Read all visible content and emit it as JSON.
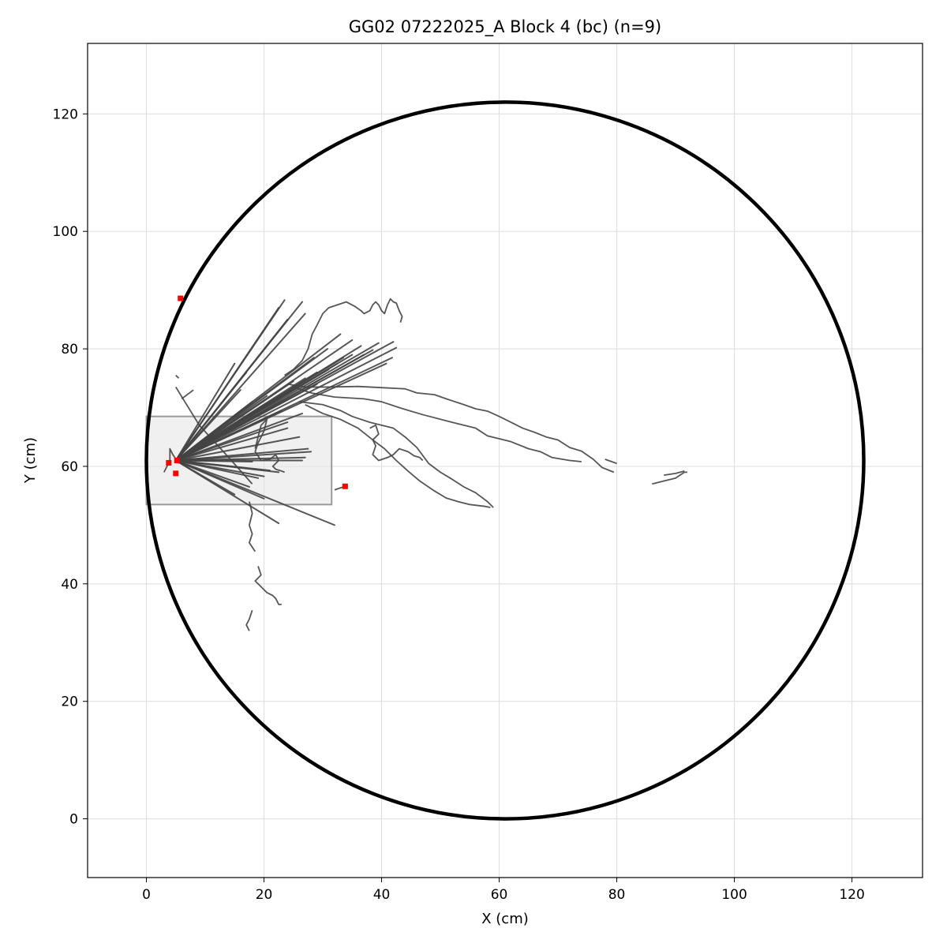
{
  "chart_data": {
    "type": "line",
    "title": "GG02 07222025_A Block 4 (bc) (n=9)",
    "xlabel": "X (cm)",
    "ylabel": "Y (cm)",
    "xlim": [
      -10,
      132
    ],
    "ylim": [
      -10,
      132
    ],
    "xticks": [
      0,
      20,
      40,
      60,
      80,
      100,
      120
    ],
    "yticks": [
      0,
      20,
      40,
      60,
      80,
      100,
      120
    ],
    "grid": true,
    "colors": {
      "arena": "#000000",
      "trajectory": "#444444",
      "endpoint": "#ff0000",
      "zone_fill": "#e6e6e6",
      "zone_edge": "#9a9a9a",
      "grid": "#dddddd"
    },
    "arena_circle": {
      "center": [
        61,
        61
      ],
      "radius": 61
    },
    "start_zone": {
      "x": [
        0,
        31.5
      ],
      "y": [
        53.5,
        68.5
      ]
    },
    "spokes_origin": [
      5,
      61
    ],
    "spoke_ends": [
      [
        23.5,
        88.3
      ],
      [
        26.5,
        88
      ],
      [
        22.5,
        87
      ],
      [
        27,
        86
      ],
      [
        24,
        85
      ],
      [
        33,
        82.5
      ],
      [
        35,
        81.5
      ],
      [
        36.5,
        80.5
      ],
      [
        38.5,
        79.8
      ],
      [
        39.5,
        81
      ],
      [
        42,
        81.2
      ],
      [
        42.5,
        80.2
      ],
      [
        41.8,
        78.5
      ],
      [
        40.8,
        77.5
      ],
      [
        37,
        79
      ],
      [
        35,
        79
      ],
      [
        33.5,
        78.5
      ],
      [
        32.5,
        77.5
      ],
      [
        31,
        76.5
      ],
      [
        29,
        76
      ],
      [
        27,
        75
      ],
      [
        25,
        74.5
      ],
      [
        24.5,
        72.8
      ],
      [
        23,
        72.2
      ],
      [
        21,
        71
      ],
      [
        20.5,
        72
      ],
      [
        18,
        71
      ],
      [
        16,
        68.5
      ],
      [
        15.5,
        67.2
      ],
      [
        26.5,
        69
      ],
      [
        24,
        66.5
      ],
      [
        27.5,
        63
      ],
      [
        27,
        61.5
      ],
      [
        26.5,
        61
      ],
      [
        22.5,
        59
      ],
      [
        21,
        59.3
      ],
      [
        20,
        58.3
      ],
      [
        19,
        58
      ],
      [
        17.5,
        56.5
      ],
      [
        15,
        55.2
      ],
      [
        20,
        54.5
      ],
      [
        22.5,
        50.3
      ],
      [
        32,
        50
      ],
      [
        18,
        60.8
      ],
      [
        16,
        73
      ],
      [
        17,
        76
      ],
      [
        15,
        77.5
      ],
      [
        23,
        69.5
      ],
      [
        24,
        67.5
      ],
      [
        26,
        65
      ],
      [
        28,
        62.5
      ],
      [
        29,
        74
      ],
      [
        30.8,
        80
      ],
      [
        28.5,
        78.5
      ]
    ],
    "paths": [
      [
        [
          24,
          74
        ],
        [
          27,
          73.5
        ],
        [
          31,
          73.5
        ],
        [
          36,
          73.6
        ],
        [
          40,
          73.4
        ],
        [
          44,
          73.2
        ],
        [
          46,
          72.5
        ],
        [
          49,
          72.2
        ],
        [
          51,
          71.5
        ],
        [
          54,
          70.5
        ],
        [
          56,
          69.8
        ],
        [
          58,
          69.4
        ],
        [
          60,
          68.5
        ],
        [
          62,
          67.5
        ],
        [
          64,
          66.5
        ],
        [
          66,
          65.8
        ],
        [
          68,
          65
        ],
        [
          70,
          64.5
        ],
        [
          72,
          63.2
        ],
        [
          74,
          62.6
        ],
        [
          76,
          61.2
        ],
        [
          77.5,
          59.8
        ],
        [
          79.5,
          59
        ]
      ],
      [
        [
          25,
          73.5
        ],
        [
          28,
          72.5
        ],
        [
          32,
          71.8
        ],
        [
          37,
          71.5
        ],
        [
          40,
          71
        ],
        [
          43,
          70
        ],
        [
          47,
          68.8
        ],
        [
          52,
          67.5
        ],
        [
          56,
          66.5
        ],
        [
          58,
          65.2
        ],
        [
          62,
          64.2
        ],
        [
          65,
          63
        ],
        [
          67,
          62.5
        ],
        [
          69,
          61.5
        ],
        [
          72,
          61
        ],
        [
          74,
          60.8
        ]
      ],
      [
        [
          26,
          71
        ],
        [
          30,
          70.5
        ],
        [
          33,
          69.5
        ],
        [
          35,
          68.5
        ],
        [
          38,
          67.5
        ],
        [
          42,
          66.5
        ],
        [
          44,
          65
        ],
        [
          46,
          63.2
        ],
        [
          48,
          60.5
        ],
        [
          50,
          59
        ],
        [
          52,
          57.8
        ],
        [
          54,
          56.5
        ],
        [
          56,
          55.5
        ],
        [
          58,
          54
        ],
        [
          59,
          53
        ]
      ],
      [
        [
          27,
          70.5
        ],
        [
          30,
          69
        ],
        [
          33,
          68
        ],
        [
          36,
          66.5
        ],
        [
          38.5,
          64.5
        ],
        [
          40.5,
          63
        ],
        [
          42.5,
          61
        ],
        [
          44.5,
          59.2
        ],
        [
          46.5,
          57.5
        ],
        [
          49,
          55.8
        ],
        [
          51,
          54.6
        ],
        [
          53,
          54
        ],
        [
          55,
          53.5
        ],
        [
          57.5,
          53.2
        ],
        [
          58.5,
          53
        ]
      ],
      [
        [
          23.5,
          75.5
        ],
        [
          25,
          76.5
        ],
        [
          26.5,
          78
        ],
        [
          27.5,
          80
        ],
        [
          28.2,
          82.5
        ],
        [
          29,
          84
        ],
        [
          30,
          86
        ],
        [
          31,
          87
        ],
        [
          32.5,
          87.5
        ],
        [
          34,
          88
        ],
        [
          35.5,
          87.2
        ],
        [
          36.5,
          86.5
        ],
        [
          37,
          86
        ],
        [
          38,
          86.5
        ],
        [
          38.5,
          87.5
        ],
        [
          39,
          88
        ],
        [
          39.5,
          87.5
        ],
        [
          40,
          86.5
        ],
        [
          40.5,
          86
        ],
        [
          41,
          87.5
        ],
        [
          41.5,
          88.5
        ],
        [
          42,
          88
        ],
        [
          42.5,
          87.8
        ],
        [
          43,
          86.5
        ],
        [
          43.5,
          85.5
        ],
        [
          43.2,
          84.5
        ]
      ],
      [
        [
          18.5,
          63
        ],
        [
          19,
          65
        ],
        [
          19.5,
          67
        ],
        [
          20.5,
          68
        ],
        [
          20,
          66
        ],
        [
          19,
          64
        ],
        [
          18.5,
          62.5
        ],
        [
          19.5,
          61
        ],
        [
          21,
          61.2
        ],
        [
          22,
          62
        ],
        [
          22.5,
          61
        ],
        [
          21.5,
          60
        ],
        [
          22,
          59.5
        ],
        [
          23,
          59.2
        ],
        [
          23.5,
          59
        ]
      ],
      [
        [
          38,
          66.5
        ],
        [
          39,
          67
        ],
        [
          39.5,
          65.5
        ],
        [
          38.5,
          64.5
        ],
        [
          39,
          63.5
        ],
        [
          38.5,
          62
        ],
        [
          39.5,
          61
        ],
        [
          41,
          61.5
        ],
        [
          42,
          62
        ],
        [
          43,
          63
        ],
        [
          44.5,
          62.5
        ],
        [
          45.5,
          61.8
        ],
        [
          46.5,
          61.5
        ],
        [
          47,
          61
        ]
      ],
      [
        [
          17.5,
          54
        ],
        [
          18,
          52
        ],
        [
          17.5,
          50
        ],
        [
          18,
          48.5
        ],
        [
          17.5,
          47
        ],
        [
          18.5,
          45.5
        ]
      ],
      [
        [
          19,
          43
        ],
        [
          19.5,
          41.5
        ],
        [
          18.5,
          40.5
        ],
        [
          19.5,
          39.5
        ],
        [
          20.5,
          38.5
        ],
        [
          21.5,
          38
        ],
        [
          22,
          37.5
        ],
        [
          22.5,
          36.5
        ],
        [
          23,
          36.5
        ]
      ],
      [
        [
          18,
          35.5
        ],
        [
          17.5,
          34
        ],
        [
          17,
          33
        ],
        [
          17.5,
          32
        ]
      ],
      [
        [
          86,
          57
        ],
        [
          88,
          57.5
        ],
        [
          90,
          58
        ],
        [
          91.5,
          59
        ],
        [
          92,
          59
        ]
      ],
      [
        [
          88,
          58.5
        ],
        [
          90,
          58.8
        ],
        [
          91.5,
          59.2
        ]
      ],
      [
        [
          5,
          75.5
        ],
        [
          5.5,
          75
        ]
      ],
      [
        [
          5,
          73.5
        ],
        [
          9,
          67
        ],
        [
          14,
          61.5
        ],
        [
          18,
          57
        ]
      ],
      [
        [
          6,
          71.5
        ],
        [
          8,
          73
        ]
      ],
      [
        [
          3,
          59
        ],
        [
          4,
          61
        ],
        [
          4,
          63
        ],
        [
          4.5,
          62
        ],
        [
          5.5,
          60.5
        ]
      ],
      [
        [
          78,
          61.2
        ],
        [
          80,
          60.5
        ]
      ],
      [
        [
          32,
          56
        ],
        [
          33.5,
          56.5
        ]
      ]
    ],
    "endpoints": [
      [
        5.8,
        88.6
      ],
      [
        3.8,
        60.6
      ],
      [
        5.2,
        61
      ],
      [
        5,
        58.8
      ],
      [
        33.8,
        56.6
      ]
    ]
  }
}
